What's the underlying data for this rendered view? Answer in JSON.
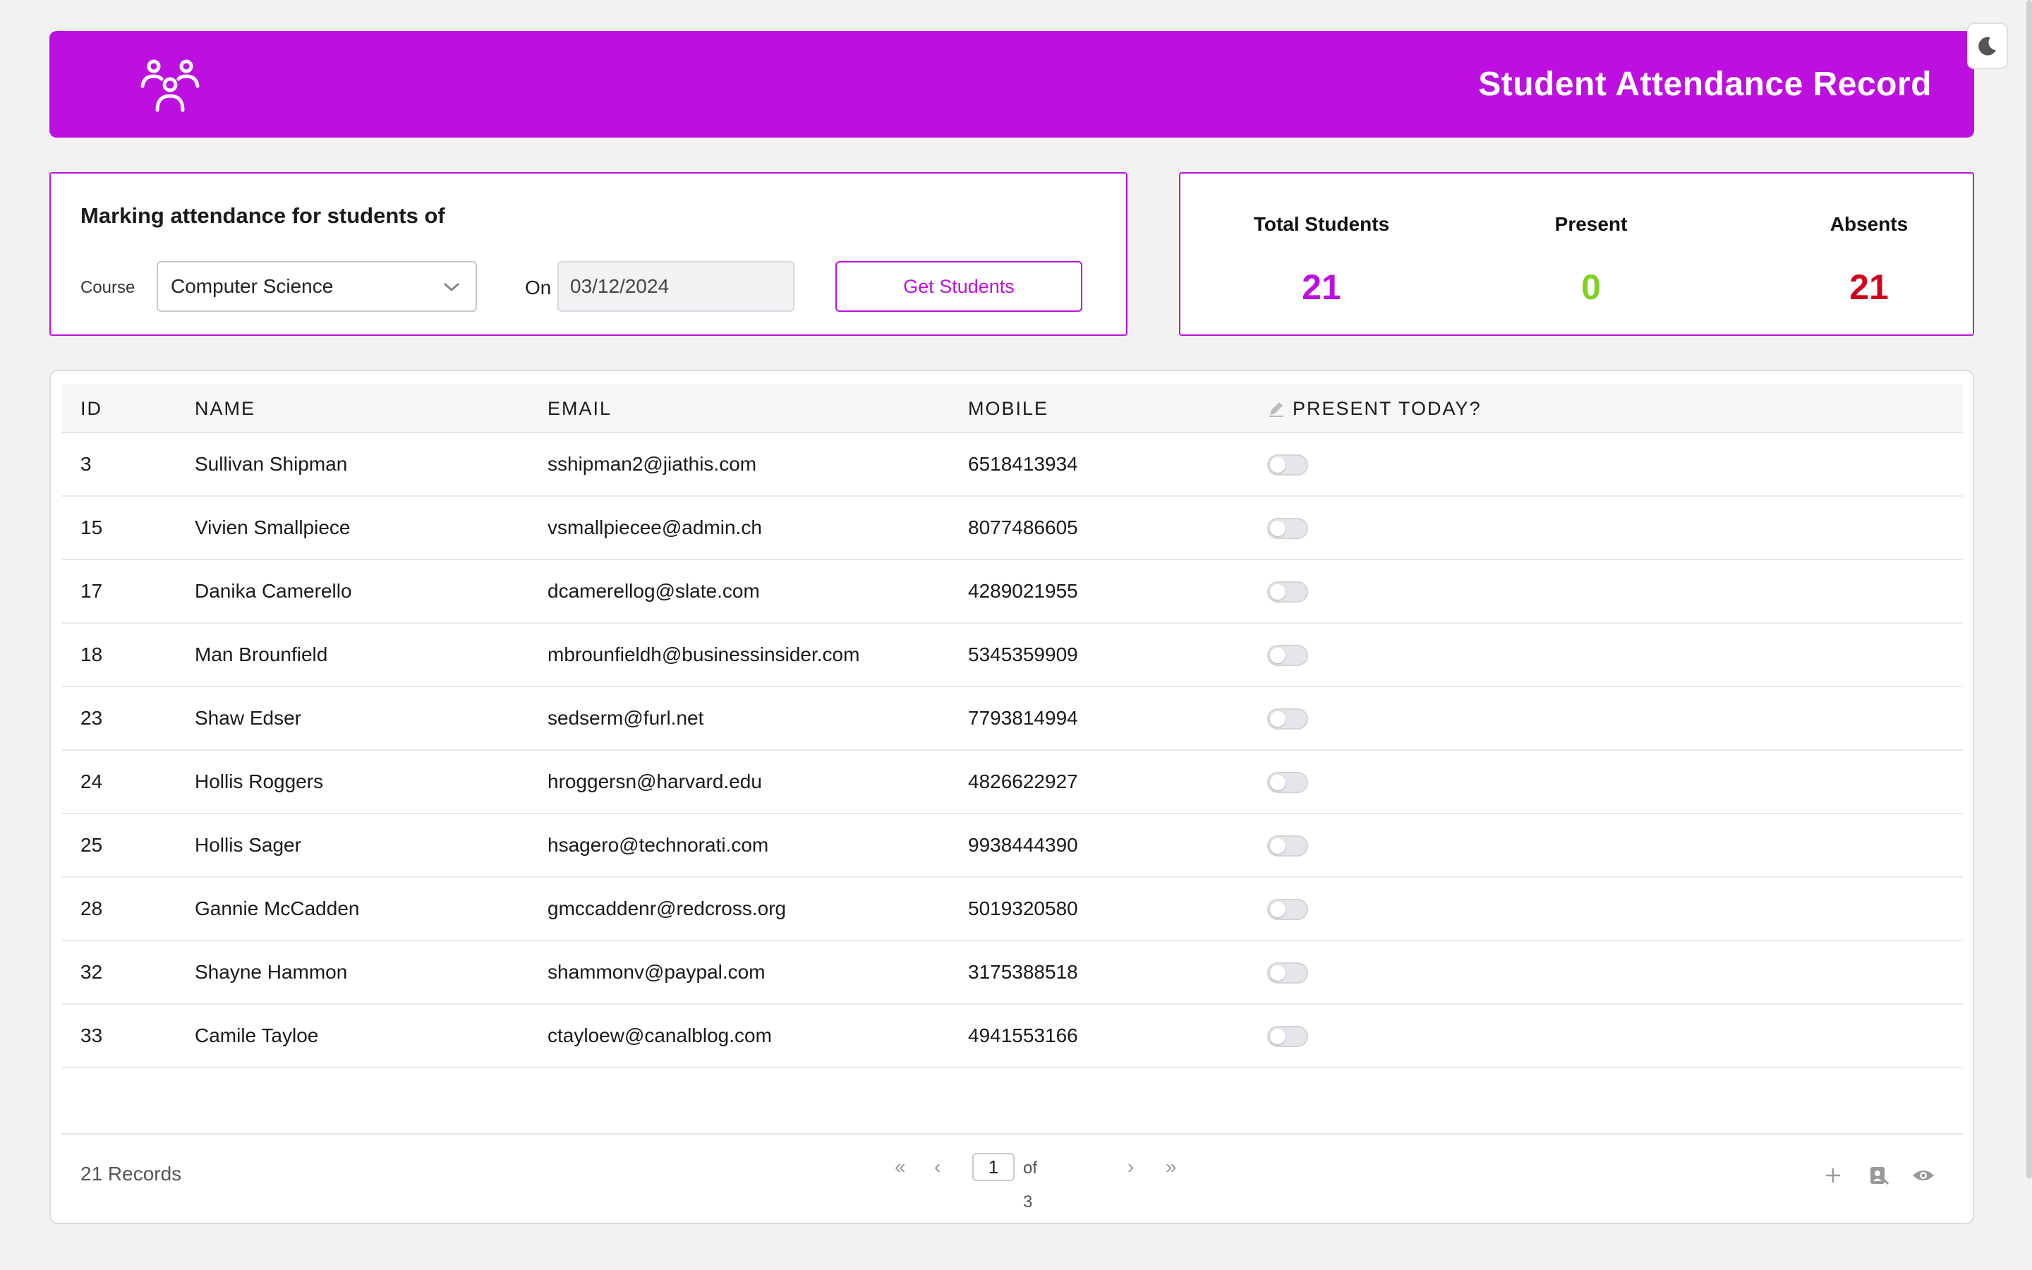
{
  "header": {
    "title": "Student Attendance Record",
    "logo_icon": "users-group-icon"
  },
  "theme_toggle": {
    "icon": "moon-icon"
  },
  "filter": {
    "heading": "Marking attendance for students of",
    "course_label": "Course",
    "course_value": "Computer Science",
    "on_label": "On",
    "date_value": "03/12/2024",
    "button_label": "Get Students"
  },
  "stats": {
    "total": {
      "label": "Total Students",
      "value": "21",
      "color": "#bd10e0"
    },
    "present": {
      "label": "Present",
      "value": "0",
      "color": "#7ed321"
    },
    "absents": {
      "label": "Absents",
      "value": "21",
      "color": "#d0021b"
    }
  },
  "table": {
    "columns": [
      "ID",
      "NAME",
      "EMAIL",
      "MOBILE",
      "PRESENT TODAY?"
    ],
    "rows": [
      {
        "id": "3",
        "name": "Sullivan Shipman",
        "email": "sshipman2@jiathis.com",
        "mobile": "6518413934",
        "present": false
      },
      {
        "id": "15",
        "name": "Vivien Smallpiece",
        "email": "vsmallpiecee@admin.ch",
        "mobile": "8077486605",
        "present": false
      },
      {
        "id": "17",
        "name": "Danika Camerello",
        "email": "dcamerellog@slate.com",
        "mobile": "4289021955",
        "present": false
      },
      {
        "id": "18",
        "name": "Man Brounfield",
        "email": "mbrounfieldh@businessinsider.com",
        "mobile": "5345359909",
        "present": false
      },
      {
        "id": "23",
        "name": "Shaw Edser",
        "email": "sedserm@furl.net",
        "mobile": "7793814994",
        "present": false
      },
      {
        "id": "24",
        "name": "Hollis Roggers",
        "email": "hroggersn@harvard.edu",
        "mobile": "4826622927",
        "present": false
      },
      {
        "id": "25",
        "name": "Hollis Sager",
        "email": "hsagero@technorati.com",
        "mobile": "9938444390",
        "present": false
      },
      {
        "id": "28",
        "name": "Gannie McCadden",
        "email": "gmccaddenr@redcross.org",
        "mobile": "5019320580",
        "present": false
      },
      {
        "id": "32",
        "name": "Shayne Hammon",
        "email": "shammonv@paypal.com",
        "mobile": "3175388518",
        "present": false
      },
      {
        "id": "33",
        "name": "Camile Tayloe",
        "email": "ctayloew@canalblog.com",
        "mobile": "4941553166",
        "present": false
      }
    ]
  },
  "footer": {
    "records": "21 Records",
    "pager": {
      "first": "«",
      "prev": "‹",
      "current_page": "1",
      "of_text": "of 3",
      "next": "›",
      "last": "»"
    },
    "icons": [
      "plus-icon",
      "export-icon",
      "eye-icon"
    ]
  }
}
